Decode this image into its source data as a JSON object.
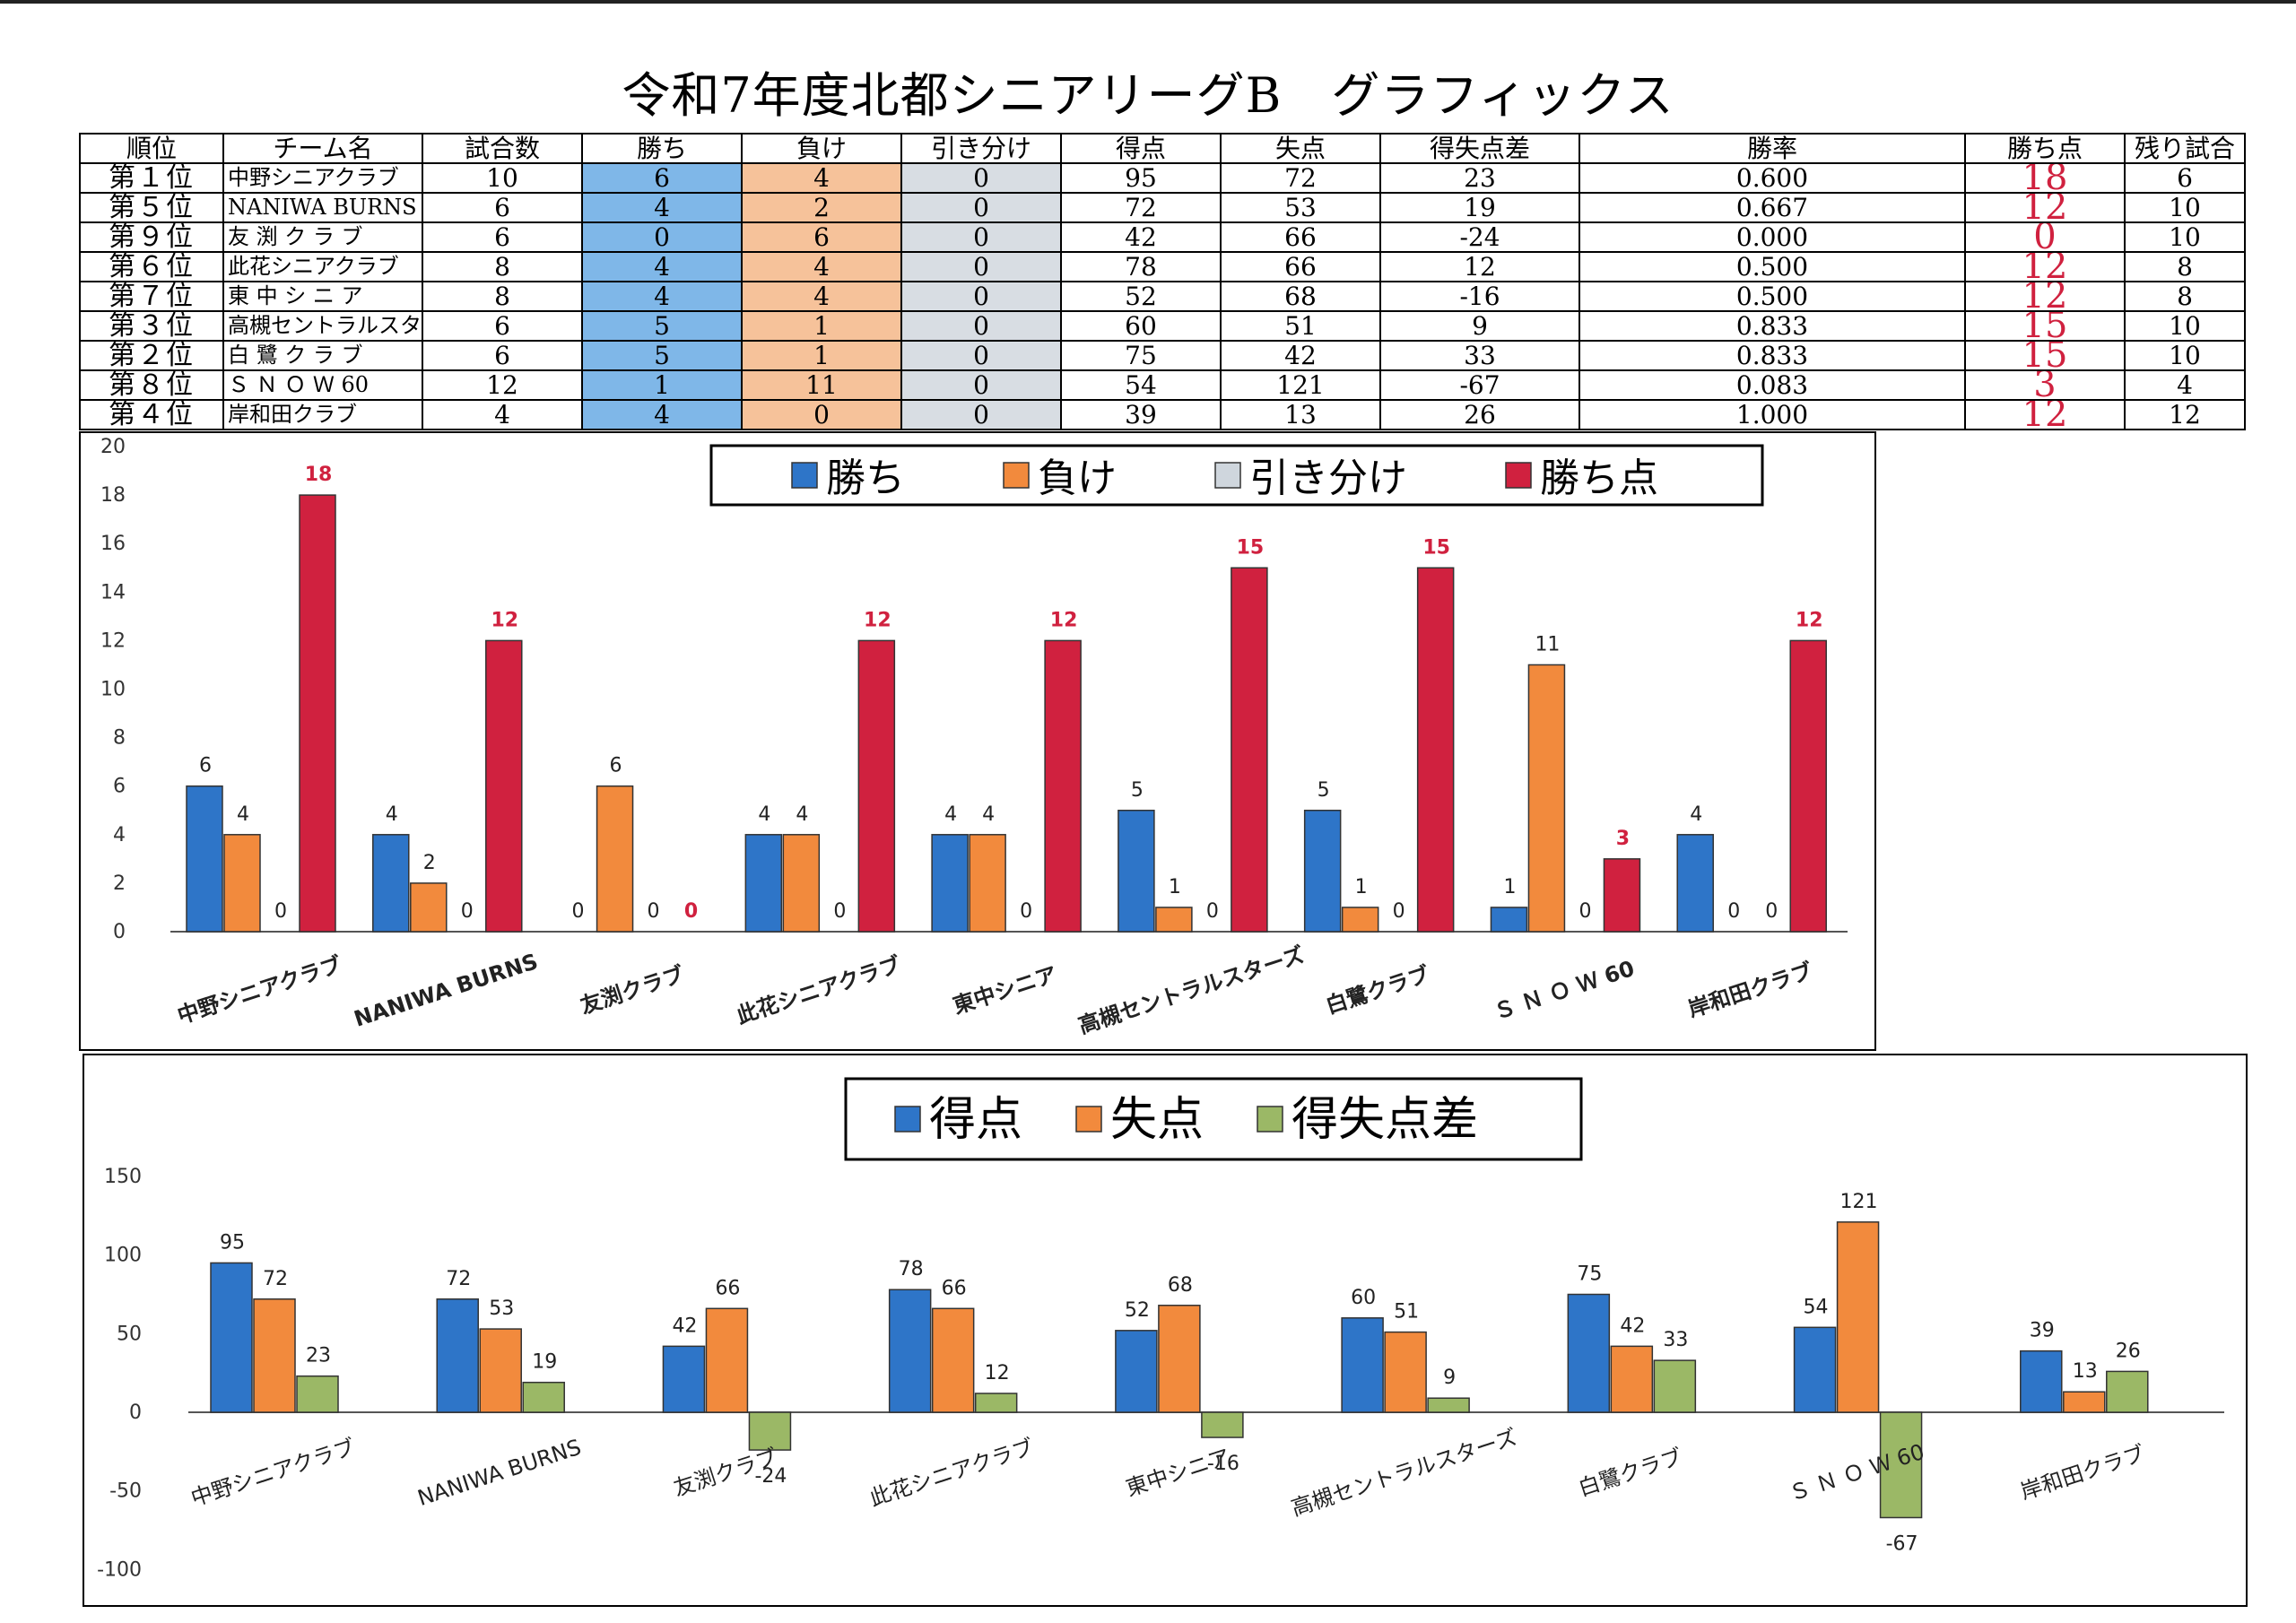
{
  "title": "令和7年度北都シニアリーグB　グラフィックス",
  "table": {
    "headers": [
      "順位",
      "チーム名",
      "試合数",
      "勝ち",
      "負け",
      "引き分け",
      "得点",
      "失点",
      "得失点差",
      "勝率",
      "勝ち点",
      "残り試合"
    ],
    "rows": [
      [
        "第１位",
        "中野シニアクラブ",
        "10",
        "6",
        "4",
        "0",
        "95",
        "72",
        "23",
        "0.600",
        "18",
        "6"
      ],
      [
        "第５位",
        "NANIWA BURNS",
        "6",
        "4",
        "2",
        "0",
        "72",
        "53",
        "19",
        "0.667",
        "12",
        "10"
      ],
      [
        "第９位",
        "友 渕 ク ラ ブ",
        "6",
        "0",
        "6",
        "0",
        "42",
        "66",
        "-24",
        "0.000",
        "0",
        "10"
      ],
      [
        "第６位",
        "此花シニアクラブ",
        "8",
        "4",
        "4",
        "0",
        "78",
        "66",
        "12",
        "0.500",
        "12",
        "8"
      ],
      [
        "第７位",
        "東 中 シ ニ ア",
        "8",
        "4",
        "4",
        "0",
        "52",
        "68",
        "-16",
        "0.500",
        "12",
        "8"
      ],
      [
        "第３位",
        "高槻セントラルスターズ",
        "6",
        "5",
        "1",
        "0",
        "60",
        "51",
        "9",
        "0.833",
        "15",
        "10"
      ],
      [
        "第２位",
        "白 鷺 ク ラ ブ",
        "6",
        "5",
        "1",
        "0",
        "75",
        "42",
        "33",
        "0.833",
        "15",
        "10"
      ],
      [
        "第８位",
        "Ｓ Ｎ Ｏ Ｗ 60",
        "12",
        "1",
        "11",
        "0",
        "54",
        "121",
        "-67",
        "0.083",
        "3",
        "4"
      ],
      [
        "第４位",
        "岸和田クラブ",
        "4",
        "4",
        "0",
        "0",
        "39",
        "13",
        "26",
        "1.000",
        "12",
        "12"
      ]
    ]
  },
  "chart_data": [
    {
      "type": "bar",
      "categories": [
        "中野シニアクラブ",
        "NANIWA BURNS",
        "友渕クラブ",
        "此花シニアクラブ",
        "東中シニア",
        "高槻セントラルスターズ",
        "白鷺クラブ",
        "Ｓ Ｎ Ｏ Ｗ 60",
        "岸和田クラブ"
      ],
      "series": [
        {
          "name": "勝ち",
          "color": "#2e75c8",
          "values": [
            6,
            4,
            0,
            4,
            4,
            5,
            5,
            1,
            4
          ]
        },
        {
          "name": "負け",
          "color": "#f28a3d",
          "values": [
            4,
            2,
            6,
            4,
            4,
            1,
            1,
            11,
            0
          ]
        },
        {
          "name": "引き分け",
          "color": "#cfd6dd",
          "values": [
            0,
            0,
            0,
            0,
            0,
            0,
            0,
            0,
            0
          ]
        },
        {
          "name": "勝ち点",
          "color": "#d0213f",
          "values": [
            18,
            12,
            0,
            12,
            12,
            15,
            15,
            3,
            12
          ]
        }
      ],
      "ylim": [
        0,
        20
      ],
      "yticks": [
        0,
        2,
        4,
        6,
        8,
        10,
        12,
        14,
        16,
        18,
        20
      ],
      "legend": "top-center",
      "grid": false
    },
    {
      "type": "bar",
      "categories": [
        "中野シニアクラブ",
        "NANIWA BURNS",
        "友渕クラブ",
        "此花シニアクラブ",
        "東中シニア",
        "高槻セントラルスターズ",
        "白鷺クラブ",
        "Ｓ Ｎ Ｏ Ｗ 60",
        "岸和田クラブ"
      ],
      "series": [
        {
          "name": "得点",
          "color": "#2e75c8",
          "values": [
            95,
            72,
            42,
            78,
            52,
            60,
            75,
            54,
            39
          ]
        },
        {
          "name": "失点",
          "color": "#f28a3d",
          "values": [
            72,
            53,
            66,
            66,
            68,
            51,
            42,
            121,
            13
          ]
        },
        {
          "name": "得失点差",
          "color": "#9bb866",
          "values": [
            23,
            19,
            -24,
            12,
            -16,
            9,
            33,
            -67,
            26
          ]
        }
      ],
      "ylim": [
        -100,
        150
      ],
      "yticks": [
        -100,
        -50,
        0,
        50,
        100,
        150
      ],
      "legend": "top-center",
      "grid": false
    }
  ]
}
